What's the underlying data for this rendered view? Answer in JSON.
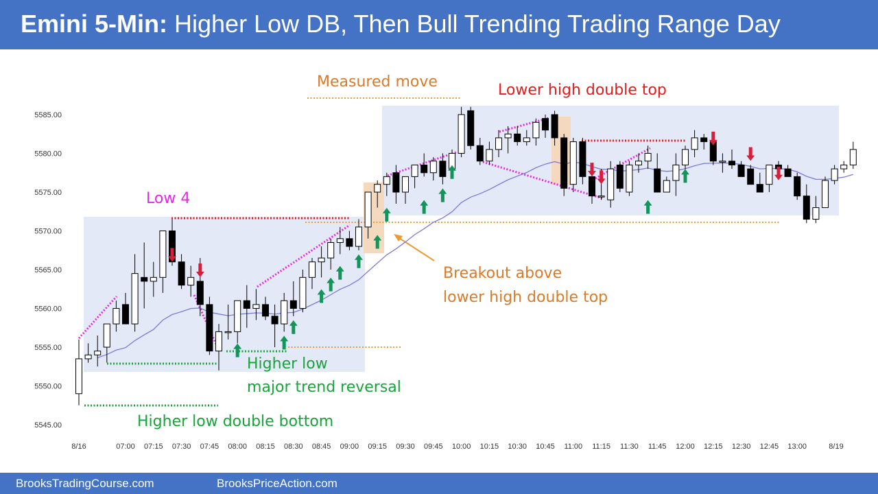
{
  "header": {
    "title_bold": "Emini 5-Min:",
    "title_rest": " Higher Low DB, Then Bull Trending Trading Range Day"
  },
  "footer": {
    "left_link": "BrooksTradingCourse.com",
    "right_link": "BrooksPriceAction.com"
  },
  "chart_data": {
    "type": "candlestick",
    "instrument": "Emini",
    "timeframe": "5-Min",
    "y_ticks": [
      "5545.00",
      "5550.00",
      "5555.00",
      "5560.00",
      "5565.00",
      "5570.00",
      "5575.00",
      "5580.00",
      "5585.00"
    ],
    "ylim": [
      5545,
      5585
    ],
    "x_ticks": [
      "8/16",
      "07:00",
      "07:15",
      "07:30",
      "07:45",
      "08:00",
      "08:15",
      "08:30",
      "08:45",
      "09:00",
      "09:15",
      "09:30",
      "09:45",
      "10:00",
      "10:15",
      "10:30",
      "10:45",
      "11:00",
      "11:15",
      "11:30",
      "11:45",
      "12:00",
      "12:15",
      "12:30",
      "12:45",
      "13:00",
      "8/19"
    ],
    "candles": [
      {
        "o": 5549,
        "h": 5556,
        "l": 5547.5,
        "c": 5553.5
      },
      {
        "o": 5553.5,
        "h": 5555.5,
        "l": 5553,
        "c": 5554
      },
      {
        "o": 5554,
        "h": 5556.5,
        "l": 5552.5,
        "c": 5554.5
      },
      {
        "o": 5555,
        "h": 5558,
        "l": 5553,
        "c": 5558
      },
      {
        "o": 5558,
        "h": 5561,
        "l": 5557,
        "c": 5560
      },
      {
        "o": 5560.5,
        "h": 5562,
        "l": 5558,
        "c": 5558
      },
      {
        "o": 5558,
        "h": 5567,
        "l": 5557,
        "c": 5564.5
      },
      {
        "o": 5564,
        "h": 5568.5,
        "l": 5560,
        "c": 5563.5
      },
      {
        "o": 5563.5,
        "h": 5566,
        "l": 5561.5,
        "c": 5564
      },
      {
        "o": 5564,
        "h": 5570,
        "l": 5562,
        "c": 5570
      },
      {
        "o": 5570,
        "h": 5571.5,
        "l": 5565.5,
        "c": 5566
      },
      {
        "o": 5566,
        "h": 5567,
        "l": 5562.5,
        "c": 5563
      },
      {
        "o": 5563,
        "h": 5565.5,
        "l": 5561.5,
        "c": 5564
      },
      {
        "o": 5563.5,
        "h": 5566.5,
        "l": 5559,
        "c": 5560.5
      },
      {
        "o": 5560.5,
        "h": 5561.5,
        "l": 5554,
        "c": 5554.5
      },
      {
        "o": 5554.5,
        "h": 5558,
        "l": 5552,
        "c": 5557
      },
      {
        "o": 5557,
        "h": 5560.5,
        "l": 5556,
        "c": 5557
      },
      {
        "o": 5557,
        "h": 5561,
        "l": 5555.5,
        "c": 5561
      },
      {
        "o": 5561,
        "h": 5563,
        "l": 5557.5,
        "c": 5560
      },
      {
        "o": 5560,
        "h": 5562.5,
        "l": 5558.5,
        "c": 5560.5
      },
      {
        "o": 5560.5,
        "h": 5561.5,
        "l": 5558.5,
        "c": 5559
      },
      {
        "o": 5559,
        "h": 5560.5,
        "l": 5555,
        "c": 5558
      },
      {
        "o": 5558,
        "h": 5562,
        "l": 5557,
        "c": 5561
      },
      {
        "o": 5561,
        "h": 5563.5,
        "l": 5559,
        "c": 5560
      },
      {
        "o": 5560,
        "h": 5565,
        "l": 5559.5,
        "c": 5564
      },
      {
        "o": 5564,
        "h": 5566.5,
        "l": 5562.5,
        "c": 5566
      },
      {
        "o": 5566,
        "h": 5568,
        "l": 5564,
        "c": 5566.5
      },
      {
        "o": 5566.5,
        "h": 5569,
        "l": 5565,
        "c": 5568.5
      },
      {
        "o": 5568.5,
        "h": 5570.5,
        "l": 5567,
        "c": 5569
      },
      {
        "o": 5569,
        "h": 5570,
        "l": 5567.5,
        "c": 5568
      },
      {
        "o": 5568,
        "h": 5571.5,
        "l": 5567.5,
        "c": 5570.5
      },
      {
        "o": 5570.5,
        "h": 5575,
        "l": 5569,
        "c": 5575
      },
      {
        "o": 5575,
        "h": 5576.5,
        "l": 5573,
        "c": 5576
      },
      {
        "o": 5576,
        "h": 5577.5,
        "l": 5574.5,
        "c": 5577
      },
      {
        "o": 5577.5,
        "h": 5578.5,
        "l": 5573.5,
        "c": 5575
      },
      {
        "o": 5575,
        "h": 5577,
        "l": 5573.5,
        "c": 5577
      },
      {
        "o": 5577,
        "h": 5578.5,
        "l": 5575.5,
        "c": 5578.5
      },
      {
        "o": 5578.5,
        "h": 5580,
        "l": 5577,
        "c": 5577.5
      },
      {
        "o": 5577.5,
        "h": 5579.5,
        "l": 5576.5,
        "c": 5579
      },
      {
        "o": 5579,
        "h": 5580,
        "l": 5576,
        "c": 5577
      },
      {
        "o": 5578,
        "h": 5580.5,
        "l": 5577,
        "c": 5580
      },
      {
        "o": 5580,
        "h": 5586,
        "l": 5579.5,
        "c": 5585
      },
      {
        "o": 5585.5,
        "h": 5586,
        "l": 5580.5,
        "c": 5581
      },
      {
        "o": 5581,
        "h": 5582,
        "l": 5578.5,
        "c": 5579
      },
      {
        "o": 5579,
        "h": 5581.5,
        "l": 5578.5,
        "c": 5580.5
      },
      {
        "o": 5580.5,
        "h": 5583,
        "l": 5579.5,
        "c": 5582
      },
      {
        "o": 5582,
        "h": 5583.5,
        "l": 5580,
        "c": 5582.5
      },
      {
        "o": 5582.5,
        "h": 5583.5,
        "l": 5581,
        "c": 5581.5
      },
      {
        "o": 5581.5,
        "h": 5583,
        "l": 5581,
        "c": 5582
      },
      {
        "o": 5582,
        "h": 5584.5,
        "l": 5581,
        "c": 5584
      },
      {
        "o": 5584.5,
        "h": 5585,
        "l": 5582,
        "c": 5583
      },
      {
        "o": 5585,
        "h": 5585.5,
        "l": 5581,
        "c": 5582
      },
      {
        "o": 5582,
        "h": 5582.5,
        "l": 5574.5,
        "c": 5575.5
      },
      {
        "o": 5576,
        "h": 5582,
        "l": 5575,
        "c": 5581.5
      },
      {
        "o": 5581.5,
        "h": 5582,
        "l": 5576,
        "c": 5577
      },
      {
        "o": 5577,
        "h": 5578,
        "l": 5573.5,
        "c": 5574.5
      },
      {
        "o": 5574.5,
        "h": 5578,
        "l": 5574,
        "c": 5574.5
      },
      {
        "o": 5574,
        "h": 5579,
        "l": 5573,
        "c": 5578
      },
      {
        "o": 5578.5,
        "h": 5579,
        "l": 5575,
        "c": 5575.5
      },
      {
        "o": 5575,
        "h": 5579,
        "l": 5574.5,
        "c": 5578.5
      },
      {
        "o": 5578.5,
        "h": 5580,
        "l": 5577.5,
        "c": 5579
      },
      {
        "o": 5579,
        "h": 5581,
        "l": 5578,
        "c": 5580
      },
      {
        "o": 5578,
        "h": 5580,
        "l": 5575,
        "c": 5575
      },
      {
        "o": 5575,
        "h": 5577,
        "l": 5575,
        "c": 5576.5
      },
      {
        "o": 5576.5,
        "h": 5580,
        "l": 5574.5,
        "c": 5578.5
      },
      {
        "o": 5578.5,
        "h": 5581,
        "l": 5577.5,
        "c": 5580.5
      },
      {
        "o": 5580.5,
        "h": 5583,
        "l": 5579.5,
        "c": 5582
      },
      {
        "o": 5582,
        "h": 5582.5,
        "l": 5580.5,
        "c": 5581.5
      },
      {
        "o": 5581.5,
        "h": 5582.5,
        "l": 5578.5,
        "c": 5579
      },
      {
        "o": 5579,
        "h": 5580,
        "l": 5577.5,
        "c": 5579
      },
      {
        "o": 5579,
        "h": 5580.5,
        "l": 5578,
        "c": 5578.5
      },
      {
        "o": 5578.5,
        "h": 5579,
        "l": 5577,
        "c": 5577
      },
      {
        "o": 5578,
        "h": 5578.5,
        "l": 5576,
        "c": 5576
      },
      {
        "o": 5576,
        "h": 5577.5,
        "l": 5575,
        "c": 5575
      },
      {
        "o": 5576,
        "h": 5578.5,
        "l": 5575,
        "c": 5578.5
      },
      {
        "o": 5578.5,
        "h": 5579,
        "l": 5577,
        "c": 5578
      },
      {
        "o": 5578,
        "h": 5578.5,
        "l": 5577,
        "c": 5577
      },
      {
        "o": 5577,
        "h": 5577.5,
        "l": 5574,
        "c": 5574.5
      },
      {
        "o": 5574.5,
        "h": 5576,
        "l": 5571,
        "c": 5571.5
      },
      {
        "o": 5571.5,
        "h": 5574.5,
        "l": 5571,
        "c": 5573
      },
      {
        "o": 5573,
        "h": 5577,
        "l": 5573,
        "c": 5576.5
      },
      {
        "o": 5576.5,
        "h": 5578.5,
        "l": 5576,
        "c": 5578
      },
      {
        "o": 5578,
        "h": 5579,
        "l": 5577.5,
        "c": 5578.5
      },
      {
        "o": 5578.5,
        "h": 5581.5,
        "l": 5578,
        "c": 5580.5
      }
    ],
    "arrows": [
      {
        "dir": "down",
        "bar": 10,
        "price": 5567
      },
      {
        "dir": "down",
        "bar": 13,
        "price": 5565
      },
      {
        "dir": "up",
        "bar": 17,
        "price": 5554.5
      },
      {
        "dir": "up",
        "bar": 22,
        "price": 5555.5
      },
      {
        "dir": "up",
        "bar": 23,
        "price": 5557.5
      },
      {
        "dir": "up",
        "bar": 26,
        "price": 5561.5
      },
      {
        "dir": "up",
        "bar": 27,
        "price": 5563
      },
      {
        "dir": "up",
        "bar": 28,
        "price": 5564.5
      },
      {
        "dir": "up",
        "bar": 30,
        "price": 5566
      },
      {
        "dir": "up",
        "bar": 32,
        "price": 5568.5
      },
      {
        "dir": "up",
        "bar": 33,
        "price": 5572
      },
      {
        "dir": "up",
        "bar": 37,
        "price": 5573
      },
      {
        "dir": "up",
        "bar": 39,
        "price": 5574.5
      },
      {
        "dir": "up",
        "bar": 40,
        "price": 5577.5
      },
      {
        "dir": "down",
        "bar": 55,
        "price": 5578
      },
      {
        "dir": "down",
        "bar": 56,
        "price": 5577
      },
      {
        "dir": "up",
        "bar": 61,
        "price": 5573
      },
      {
        "dir": "up",
        "bar": 65,
        "price": 5577
      },
      {
        "dir": "down",
        "bar": 68,
        "price": 5582
      },
      {
        "dir": "down",
        "bar": 72,
        "price": 5580
      },
      {
        "dir": "down",
        "bar": 75,
        "price": 5577.5
      }
    ],
    "annotations": [
      {
        "label": "Higher Low DB, Then Bull Trending Trading Range Day"
      },
      {
        "label": "Low 4"
      },
      {
        "label": "Measured move"
      },
      {
        "label": "Lower high double top"
      },
      {
        "label": "Breakout above"
      },
      {
        "label": "lower high double top"
      },
      {
        "label": "Higher low"
      },
      {
        "label": "major trend reversal"
      },
      {
        "label": "Higher low double bottom"
      }
    ],
    "colors": {
      "bull_candle": "#ffffff",
      "bear_candle": "#000000",
      "moving_average": "#7b7bd6",
      "range_box": "#e4e9f7",
      "breakout_box": "#f4d9be",
      "up_arrow": "#14935a",
      "down_arrow": "#d61f3b",
      "magenta": "#e628e6",
      "red_line": "#e41b1b",
      "orange": "#ee9a32",
      "green": "#18a33c",
      "header_bar": "#4472c4"
    }
  }
}
